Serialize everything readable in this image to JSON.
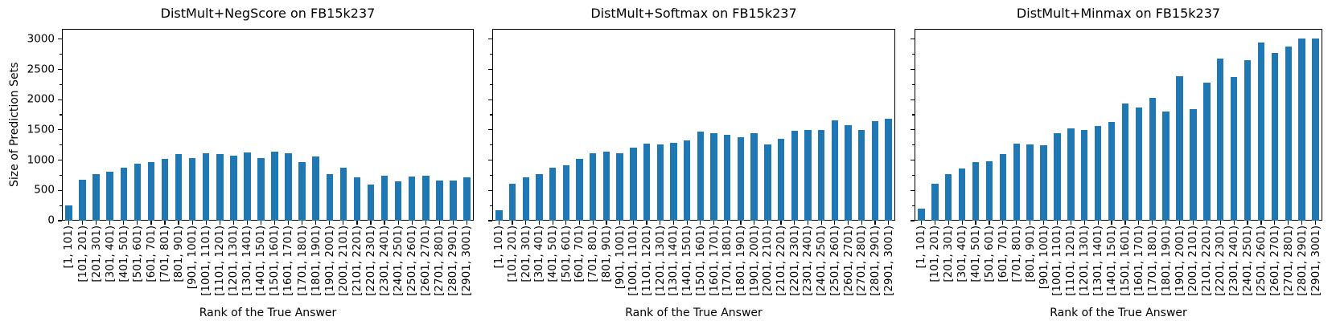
{
  "figure": {
    "ylabel": "Size of Prediction Sets",
    "xlabel": "Rank of the True Answer",
    "bar_color": "#1f77b4",
    "axis_color": "#000000",
    "background_color": "#ffffff",
    "yticks": [
      0,
      500,
      1000,
      1500,
      2000,
      2500,
      3000
    ],
    "yticks_minor": [
      250,
      750,
      1250,
      1750,
      2250,
      2750
    ],
    "ylim": [
      0,
      3170
    ],
    "legend": "none",
    "grid": false
  },
  "chart_data": [
    {
      "type": "bar",
      "title": "DistMult+NegScore on FB15k237",
      "xlabel": "Rank of the True Answer",
      "ylabel": "Size of Prediction Sets",
      "ylim": [
        0,
        3170
      ],
      "categories": [
        "[1, 101)",
        "[101, 201)",
        "[201, 301)",
        "[301, 401)",
        "[401, 501)",
        "[501, 601)",
        "[601, 701)",
        "[701, 801)",
        "[801, 901)",
        "[901, 1001)",
        "[1001, 1101)",
        "[1101, 1201)",
        "[1201, 1301)",
        "[1301, 1401)",
        "[1401, 1501)",
        "[1501, 1601)",
        "[1601, 1701)",
        "[1701, 1801)",
        "[1801, 1901)",
        "[1901, 2001)",
        "[2001, 2101)",
        "[2101, 2201)",
        "[2201, 2301)",
        "[2301, 2401)",
        "[2401, 2501)",
        "[2501, 2601)",
        "[2601, 2701)",
        "[2701, 2801)",
        "[2801, 2901)",
        "[2901, 3001)"
      ],
      "values": [
        250,
        675,
        775,
        805,
        870,
        940,
        965,
        1020,
        1095,
        1030,
        1115,
        1095,
        1080,
        1125,
        1040,
        1135,
        1120,
        970,
        1065,
        765,
        870,
        720,
        600,
        745,
        650,
        735,
        740,
        665,
        665,
        720
      ]
    },
    {
      "type": "bar",
      "title": "DistMult+Softmax on FB15k237",
      "xlabel": "Rank of the True Answer",
      "ylabel": "Size of Prediction Sets",
      "ylim": [
        0,
        3170
      ],
      "categories": [
        "[1, 101)",
        "[101, 201)",
        "[201, 301)",
        "[301, 401)",
        "[401, 501)",
        "[501, 601)",
        "[601, 701)",
        "[701, 801)",
        "[801, 901)",
        "[901, 1001)",
        "[1001, 1101)",
        "[1101, 1201)",
        "[1201, 1301)",
        "[1301, 1401)",
        "[1401, 1501)",
        "[1501, 1601)",
        "[1601, 1701)",
        "[1701, 1801)",
        "[1801, 1901)",
        "[1901, 2001)",
        "[2001, 2101)",
        "[2101, 2201)",
        "[2201, 2301)",
        "[2301, 2401)",
        "[2401, 2501)",
        "[2501, 2601)",
        "[2601, 2701)",
        "[2701, 2801)",
        "[2801, 2901)",
        "[2901, 3001)"
      ],
      "values": [
        175,
        605,
        715,
        770,
        875,
        920,
        1015,
        1115,
        1135,
        1115,
        1205,
        1270,
        1260,
        1280,
        1320,
        1470,
        1440,
        1415,
        1380,
        1450,
        1260,
        1350,
        1480,
        1500,
        1500,
        1655,
        1580,
        1505,
        1645,
        1685
      ]
    },
    {
      "type": "bar",
      "title": "DistMult+Minmax on FB15k237",
      "xlabel": "Rank of the True Answer",
      "ylabel": "Size of Prediction Sets",
      "ylim": [
        0,
        3170
      ],
      "categories": [
        "[1, 101)",
        "[101, 201)",
        "[201, 301)",
        "[301, 401)",
        "[401, 501)",
        "[501, 601)",
        "[601, 701)",
        "[701, 801)",
        "[801, 901)",
        "[901, 1001)",
        "[1001, 1101)",
        "[1101, 1201)",
        "[1201, 1301)",
        "[1301, 1401)",
        "[1401, 1501)",
        "[1501, 1601)",
        "[1601, 1701)",
        "[1701, 1801)",
        "[1801, 1901)",
        "[1901, 2001)",
        "[2001, 2101)",
        "[2101, 2201)",
        "[2201, 2301)",
        "[2301, 2401)",
        "[2401, 2501)",
        "[2501, 2601)",
        "[2601, 2701)",
        "[2701, 2801)",
        "[2801, 2901)",
        "[2901, 3001)"
      ],
      "values": [
        200,
        615,
        770,
        860,
        965,
        975,
        1105,
        1275,
        1255,
        1250,
        1440,
        1530,
        1505,
        1570,
        1625,
        1930,
        1870,
        2030,
        1805,
        2390,
        1850,
        2275,
        2675,
        2380,
        2655,
        2940,
        2770,
        2880,
        3005,
        3005
      ]
    }
  ]
}
